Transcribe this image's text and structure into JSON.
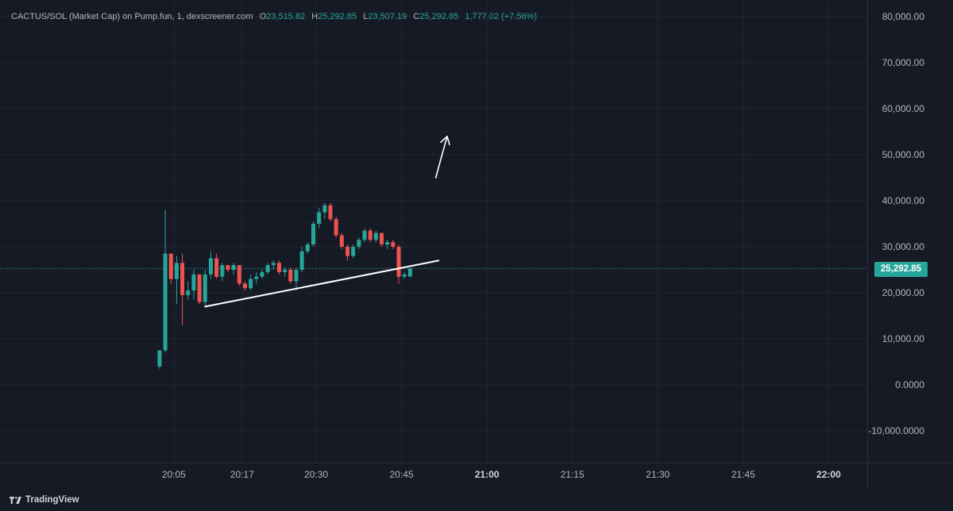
{
  "legend": {
    "symbol": "CACTUS/SOL (Market Cap) on Pump.fun, 1, dexscreener.com",
    "open_label": "O",
    "open": "23,515.82",
    "high_label": "H",
    "high": "25,292.85",
    "low_label": "L",
    "low": "23,507.19",
    "close_label": "C",
    "close": "25,292.85",
    "change": "1,777.02 (+7.56%)"
  },
  "price_badge": "25,292.85",
  "brand": "TradingView",
  "colors": {
    "up": "#26a69a",
    "down": "#ef5350",
    "background": "#161a25",
    "grid": "#232733",
    "axis_text": "#b2b5be"
  },
  "chart_data": {
    "type": "candlestick",
    "title": "CACTUS/SOL (Market Cap) on Pump.fun, 1, dexscreener.com",
    "interval_minutes": 1,
    "y_ticks": [
      "80,000.00",
      "70,000.00",
      "60,000.00",
      "50,000.00",
      "40,000.00",
      "30,000.00",
      "20,000.00",
      "10,000.00",
      "0.0000",
      "-10,000.0000"
    ],
    "y_tick_values": [
      80000,
      70000,
      60000,
      50000,
      40000,
      30000,
      20000,
      10000,
      0,
      -10000
    ],
    "x_ticks": [
      "20:05",
      "20:17",
      "20:30",
      "20:45",
      "21:00",
      "21:15",
      "21:30",
      "21:45",
      "22:00"
    ],
    "x_tick_minutes": [
      5,
      17,
      30,
      45,
      60,
      75,
      90,
      105,
      120
    ],
    "x_tick_bold": [
      false,
      false,
      false,
      false,
      true,
      false,
      false,
      false,
      true
    ],
    "ylim": [
      -15000,
      82000
    ],
    "last_price": 25292.85,
    "candles": [
      {
        "t": 2.5,
        "o": 4000,
        "h": 7500,
        "l": 3500,
        "c": 7500
      },
      {
        "t": 3.5,
        "o": 7500,
        "h": 38000,
        "l": 7000,
        "c": 28500
      },
      {
        "t": 4.5,
        "o": 28500,
        "h": 28500,
        "l": 22000,
        "c": 23000
      },
      {
        "t": 5.5,
        "o": 23000,
        "h": 28000,
        "l": 17500,
        "c": 26500
      },
      {
        "t": 6.5,
        "o": 26500,
        "h": 28500,
        "l": 13000,
        "c": 19500
      },
      {
        "t": 7.5,
        "o": 19500,
        "h": 22500,
        "l": 18500,
        "c": 20500
      },
      {
        "t": 8.5,
        "o": 20500,
        "h": 25000,
        "l": 18500,
        "c": 24000
      },
      {
        "t": 9.5,
        "o": 24000,
        "h": 24000,
        "l": 17500,
        "c": 18000
      },
      {
        "t": 10.5,
        "o": 18000,
        "h": 25000,
        "l": 17000,
        "c": 24000
      },
      {
        "t": 11.5,
        "o": 24000,
        "h": 29000,
        "l": 23000,
        "c": 27500
      },
      {
        "t": 12.5,
        "o": 27500,
        "h": 28500,
        "l": 23000,
        "c": 23500
      },
      {
        "t": 13.5,
        "o": 23500,
        "h": 26500,
        "l": 22500,
        "c": 26000
      },
      {
        "t": 14.5,
        "o": 26000,
        "h": 26000,
        "l": 24500,
        "c": 25000
      },
      {
        "t": 15.5,
        "o": 25000,
        "h": 26500,
        "l": 24000,
        "c": 26000
      },
      {
        "t": 16.5,
        "o": 26000,
        "h": 26000,
        "l": 21500,
        "c": 22000
      },
      {
        "t": 17.5,
        "o": 22000,
        "h": 22500,
        "l": 20500,
        "c": 21000
      },
      {
        "t": 18.5,
        "o": 21000,
        "h": 24000,
        "l": 20500,
        "c": 23000
      },
      {
        "t": 19.5,
        "o": 23000,
        "h": 24500,
        "l": 22000,
        "c": 23500
      },
      {
        "t": 20.5,
        "o": 23500,
        "h": 25000,
        "l": 23000,
        "c": 24500
      },
      {
        "t": 21.5,
        "o": 24500,
        "h": 26500,
        "l": 24000,
        "c": 26000
      },
      {
        "t": 22.5,
        "o": 26000,
        "h": 27000,
        "l": 25000,
        "c": 26500
      },
      {
        "t": 23.5,
        "o": 26500,
        "h": 27000,
        "l": 24000,
        "c": 24500
      },
      {
        "t": 24.5,
        "o": 24500,
        "h": 25500,
        "l": 23500,
        "c": 25000
      },
      {
        "t": 25.5,
        "o": 25000,
        "h": 25500,
        "l": 22000,
        "c": 22500
      },
      {
        "t": 26.5,
        "o": 22500,
        "h": 25500,
        "l": 20500,
        "c": 25000
      },
      {
        "t": 27.5,
        "o": 25000,
        "h": 30000,
        "l": 24500,
        "c": 29000
      },
      {
        "t": 28.5,
        "o": 29000,
        "h": 31000,
        "l": 28500,
        "c": 30500
      },
      {
        "t": 29.5,
        "o": 30500,
        "h": 35500,
        "l": 30000,
        "c": 35000
      },
      {
        "t": 30.5,
        "o": 35000,
        "h": 38500,
        "l": 34000,
        "c": 37500
      },
      {
        "t": 31.5,
        "o": 37500,
        "h": 39500,
        "l": 36000,
        "c": 39000
      },
      {
        "t": 32.5,
        "o": 39000,
        "h": 39500,
        "l": 35500,
        "c": 36000
      },
      {
        "t": 33.5,
        "o": 36000,
        "h": 36500,
        "l": 32000,
        "c": 32500
      },
      {
        "t": 34.5,
        "o": 32500,
        "h": 33000,
        "l": 29500,
        "c": 30000
      },
      {
        "t": 35.5,
        "o": 30000,
        "h": 30500,
        "l": 27000,
        "c": 28000
      },
      {
        "t": 36.5,
        "o": 28000,
        "h": 30500,
        "l": 27500,
        "c": 30000
      },
      {
        "t": 37.5,
        "o": 30000,
        "h": 32000,
        "l": 29500,
        "c": 31500
      },
      {
        "t": 38.5,
        "o": 31500,
        "h": 34000,
        "l": 31000,
        "c": 33500
      },
      {
        "t": 39.5,
        "o": 33500,
        "h": 34000,
        "l": 31000,
        "c": 31500
      },
      {
        "t": 40.5,
        "o": 31500,
        "h": 33500,
        "l": 31000,
        "c": 33000
      },
      {
        "t": 41.5,
        "o": 33000,
        "h": 33000,
        "l": 30000,
        "c": 30500
      },
      {
        "t": 42.5,
        "o": 30500,
        "h": 31500,
        "l": 29500,
        "c": 31000
      },
      {
        "t": 43.5,
        "o": 31000,
        "h": 31500,
        "l": 29500,
        "c": 30000
      },
      {
        "t": 44.5,
        "o": 30000,
        "h": 30500,
        "l": 22000,
        "c": 23500
      },
      {
        "t": 45.5,
        "o": 23500,
        "h": 24500,
        "l": 23000,
        "c": 24000
      },
      {
        "t": 46.5,
        "o": 23515.82,
        "h": 25292.85,
        "l": 23507.19,
        "c": 25292.85
      }
    ],
    "annotations": [
      {
        "type": "trendline",
        "from": {
          "t": 10.5,
          "v": 17000
        },
        "to": {
          "t": 51.5,
          "v": 27000
        },
        "color": "#ffffff"
      },
      {
        "type": "arrow",
        "from": {
          "t": 51.0,
          "v": 45000
        },
        "to": {
          "t": 53.0,
          "v": 54000
        },
        "color": "#ffffff"
      }
    ]
  }
}
